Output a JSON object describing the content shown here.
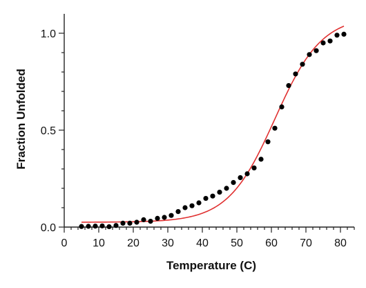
{
  "chart_data": {
    "type": "scatter",
    "xlabel": "Temperature (C)",
    "ylabel": "Fraction Unfolded",
    "xlim": [
      0,
      84
    ],
    "ylim": [
      0,
      1.1
    ],
    "x_ticks": [
      0,
      10,
      20,
      30,
      40,
      50,
      60,
      70,
      80
    ],
    "y_ticks": [
      0.0,
      0.5,
      1.0
    ],
    "y_tick_labels": [
      "0.0",
      "0.5",
      "1.0"
    ],
    "grid": false,
    "colors": {
      "points": "#000000",
      "fit": "#e03030",
      "axis": "#222222"
    },
    "series": [
      {
        "type": "scatter",
        "points": [
          [
            5,
            0.003
          ],
          [
            7,
            0.004
          ],
          [
            9,
            0.005
          ],
          [
            11,
            0.006
          ],
          [
            13,
            0.002
          ],
          [
            15,
            0.008
          ],
          [
            17,
            0.02
          ],
          [
            19,
            0.02
          ],
          [
            21,
            0.025
          ],
          [
            23,
            0.038
          ],
          [
            25,
            0.03
          ],
          [
            27,
            0.045
          ],
          [
            29,
            0.05
          ],
          [
            31,
            0.06
          ],
          [
            33,
            0.08
          ],
          [
            35,
            0.1
          ],
          [
            37,
            0.11
          ],
          [
            39,
            0.125
          ],
          [
            41,
            0.148
          ],
          [
            43,
            0.16
          ],
          [
            45,
            0.18
          ],
          [
            47,
            0.2
          ],
          [
            49,
            0.23
          ],
          [
            51,
            0.255
          ],
          [
            53,
            0.275
          ],
          [
            55,
            0.305
          ],
          [
            57,
            0.35
          ],
          [
            59,
            0.44
          ],
          [
            61,
            0.51
          ],
          [
            63,
            0.62
          ],
          [
            65,
            0.73
          ],
          [
            67,
            0.79
          ],
          [
            69,
            0.84
          ],
          [
            71,
            0.89
          ],
          [
            73,
            0.91
          ],
          [
            75,
            0.95
          ],
          [
            77,
            0.96
          ],
          [
            79,
            0.99
          ],
          [
            81,
            0.995
          ]
        ]
      },
      {
        "type": "line",
        "fit": {
          "bottom": 0.025,
          "top": 1.09,
          "midpoint": 61,
          "slope": 6.8
        },
        "x_range": [
          5,
          81
        ]
      }
    ]
  }
}
